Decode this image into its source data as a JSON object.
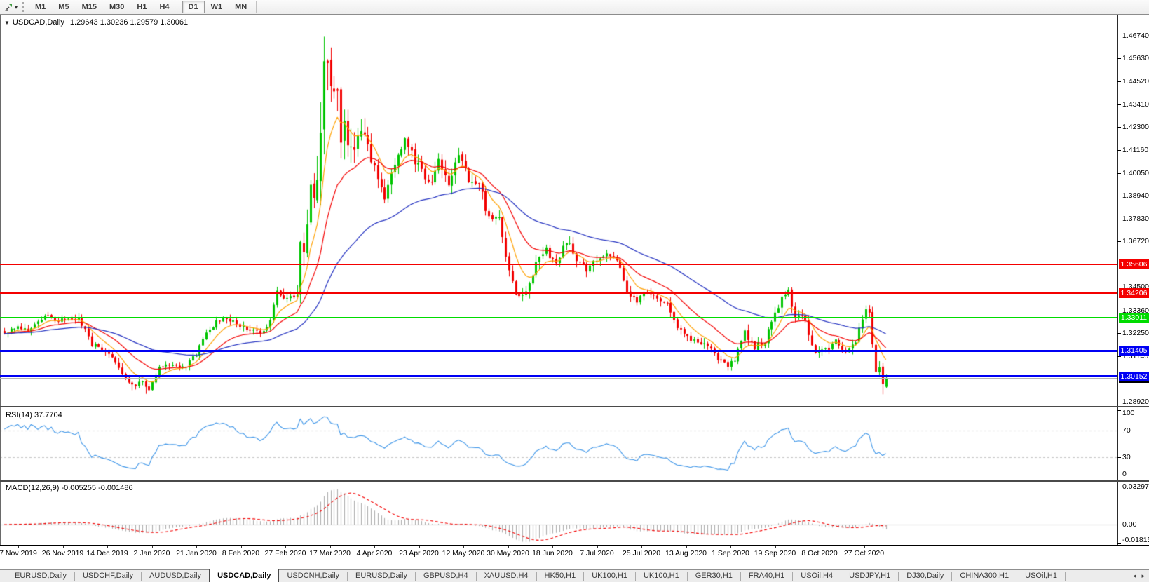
{
  "toolbar": {
    "timeframes": [
      {
        "label": "M1"
      },
      {
        "label": "M5"
      },
      {
        "label": "M15"
      },
      {
        "label": "M30"
      },
      {
        "label": "H1"
      },
      {
        "label": "H4"
      },
      {
        "label": "D1"
      },
      {
        "label": "W1"
      },
      {
        "label": "MN"
      }
    ],
    "active_timeframe": "D1",
    "dropdown_caret": "▾",
    "collapse_glyph": "▼"
  },
  "window": {
    "symbol_period": "USDCAD,Daily",
    "ohlc": "1.29643 1.30236 1.29579 1.30061"
  },
  "price_axis": {
    "ticks": [
      {
        "label": "1.46740",
        "price": 1.4674
      },
      {
        "label": "1.45630",
        "price": 1.4563
      },
      {
        "label": "1.44520",
        "price": 1.4452
      },
      {
        "label": "1.43410",
        "price": 1.4341
      },
      {
        "label": "1.42300",
        "price": 1.423
      },
      {
        "label": "1.41160",
        "price": 1.4116
      },
      {
        "label": "1.40050",
        "price": 1.4005
      },
      {
        "label": "1.38940",
        "price": 1.3894
      },
      {
        "label": "1.37830",
        "price": 1.3783
      },
      {
        "label": "1.36720",
        "price": 1.3672
      },
      {
        "label": "1.34500",
        "price": 1.345
      },
      {
        "label": "1.33360",
        "price": 1.3336
      },
      {
        "label": "1.32250",
        "price": 1.3225
      },
      {
        "label": "1.31140",
        "price": 1.3114
      },
      {
        "label": "1.28920",
        "price": 1.2892
      }
    ]
  },
  "levels": [
    {
      "label": "1.35606",
      "price": 1.35606,
      "color": "#f40000",
      "thickness": 2
    },
    {
      "label": "1.34206",
      "price": 1.34206,
      "color": "#f40000",
      "thickness": 2
    },
    {
      "label": "1.33011",
      "price": 1.33011,
      "color": "#00dc00",
      "thickness": 2
    },
    {
      "label": "1.31405",
      "price": 1.31405,
      "color": "#0000f4",
      "thickness": 3
    },
    {
      "label": "1.30152",
      "price": 1.30152,
      "color": "#0000f4",
      "thickness": 3
    }
  ],
  "current_price": {
    "label": "1.30061",
    "price": 1.30061,
    "badge_bg": "#000000",
    "line_color": "#b6b6b6"
  },
  "rsi_panel": {
    "label": "RSI(14) 37.7704",
    "ticks": [
      {
        "label": "100",
        "value": 100
      },
      {
        "label": "70",
        "value": 70
      },
      {
        "label": "30",
        "value": 30
      },
      {
        "label": "0",
        "value": 0
      }
    ],
    "dashed_levels": [
      70,
      30
    ],
    "line_color": "#3f96e8"
  },
  "macd_panel": {
    "label": "MACD(12,26,9) -0.005255 -0.001486",
    "ticks": [
      {
        "label": "0.032972",
        "value": 0.032972
      },
      {
        "label": "0.00",
        "value": 0
      },
      {
        "label": "-0.018154",
        "value": -0.018154
      }
    ],
    "hist_color": "#ababab",
    "signal_color": "#f40000"
  },
  "date_axis": {
    "labels": [
      "7 Nov 2019",
      "26 Nov 2019",
      "14 Dec 2019",
      "2 Jan 2020",
      "21 Jan 2020",
      "8 Feb 2020",
      "27 Feb 2020",
      "17 Mar 2020",
      "4 Apr 2020",
      "23 Apr 2020",
      "12 May 2020",
      "30 May 2020",
      "18 Jun 2020",
      "7 Jul 2020",
      "25 Jul 2020",
      "13 Aug 2020",
      "1 Sep 2020",
      "19 Sep 2020",
      "8 Oct 2020",
      "27 Oct 2020"
    ]
  },
  "tabs": {
    "items": [
      {
        "label": "EURUSD,Daily"
      },
      {
        "label": "USDCHF,Daily"
      },
      {
        "label": "AUDUSD,Daily"
      },
      {
        "label": "USDCAD,Daily"
      },
      {
        "label": "USDCNH,Daily"
      },
      {
        "label": "EURUSD,Daily"
      },
      {
        "label": "GBPUSD,H4"
      },
      {
        "label": "XAUUSD,H4"
      },
      {
        "label": "HK50,H1"
      },
      {
        "label": "UK100,H1"
      },
      {
        "label": "UK100,H1"
      },
      {
        "label": "GER30,H1"
      },
      {
        "label": "FRA40,H1"
      },
      {
        "label": "USOil,H4"
      },
      {
        "label": "USDJPY,H1"
      },
      {
        "label": "DJ30,Daily"
      },
      {
        "label": "CHINA300,H1"
      },
      {
        "label": "USOil,H1"
      }
    ],
    "active_index": 3,
    "scroll_left": "◂",
    "scroll_right": "▸"
  },
  "chart_data": {
    "type": "candlestick",
    "title": "USDCAD Daily",
    "symbol": "USDCAD",
    "timeframe": "Daily",
    "ylim": [
      1.2871,
      1.4773
    ],
    "candle_count": 263,
    "up_color": "#00c400",
    "down_color": "#f20000",
    "close_anchors": [
      [
        0,
        1.323
      ],
      [
        4,
        1.3262
      ],
      [
        8,
        1.324
      ],
      [
        12,
        1.3308
      ],
      [
        15,
        1.3295
      ],
      [
        18,
        1.3282
      ],
      [
        22,
        1.33
      ],
      [
        26,
        1.317
      ],
      [
        30,
        1.3148
      ],
      [
        34,
        1.3052
      ],
      [
        37,
        1.298
      ],
      [
        39,
        1.2962
      ],
      [
        41,
        1.2992
      ],
      [
        43,
        1.2956
      ],
      [
        46,
        1.3056
      ],
      [
        50,
        1.3076
      ],
      [
        54,
        1.3066
      ],
      [
        57,
        1.3122
      ],
      [
        60,
        1.3232
      ],
      [
        64,
        1.3292
      ],
      [
        68,
        1.3282
      ],
      [
        72,
        1.3252
      ],
      [
        76,
        1.3226
      ],
      [
        79,
        1.3282
      ],
      [
        81,
        1.3422
      ],
      [
        83,
        1.3382
      ],
      [
        85,
        1.342
      ],
      [
        87,
        1.3412
      ],
      [
        88,
        1.366
      ],
      [
        89,
        1.358
      ],
      [
        90,
        1.3762
      ],
      [
        91,
        1.3922
      ],
      [
        92,
        1.3892
      ],
      [
        93,
        1.4032
      ],
      [
        94,
        1.4262
      ],
      [
        95,
        1.45
      ],
      [
        96,
        1.4462
      ],
      [
        97,
        1.4382
      ],
      [
        98,
        1.4452
      ],
      [
        99,
        1.4422
      ],
      [
        100,
        1.4182
      ],
      [
        101,
        1.4262
      ],
      [
        102,
        1.4102
      ],
      [
        103,
        1.4092
      ],
      [
        105,
        1.4202
      ],
      [
        107,
        1.4212
      ],
      [
        110,
        1.4032
      ],
      [
        113,
        1.3892
      ],
      [
        116,
        1.4042
      ],
      [
        119,
        1.4182
      ],
      [
        121,
        1.4092
      ],
      [
        124,
        1.4002
      ],
      [
        126,
        1.3942
      ],
      [
        129,
        1.4072
      ],
      [
        132,
        1.3922
      ],
      [
        135,
        1.4102
      ],
      [
        138,
        1.3982
      ],
      [
        141,
        1.3942
      ],
      [
        144,
        1.3792
      ],
      [
        147,
        1.3782
      ],
      [
        150,
        1.3522
      ],
      [
        153,
        1.3392
      ],
      [
        155,
        1.3412
      ],
      [
        158,
        1.3552
      ],
      [
        161,
        1.3632
      ],
      [
        164,
        1.3562
      ],
      [
        167,
        1.3682
      ],
      [
        170,
        1.3582
      ],
      [
        173,
        1.3542
      ],
      [
        176,
        1.3592
      ],
      [
        179,
        1.3622
      ],
      [
        182,
        1.3582
      ],
      [
        185,
        1.3422
      ],
      [
        188,
        1.3382
      ],
      [
        191,
        1.3422
      ],
      [
        194,
        1.3392
      ],
      [
        197,
        1.3382
      ],
      [
        200,
        1.3252
      ],
      [
        203,
        1.3202
      ],
      [
        206,
        1.3182
      ],
      [
        209,
        1.3162
      ],
      [
        212,
        1.3102
      ],
      [
        215,
        1.3052
      ],
      [
        217,
        1.3102
      ],
      [
        220,
        1.3232
      ],
      [
        223,
        1.3162
      ],
      [
        226,
        1.3182
      ],
      [
        229,
        1.3322
      ],
      [
        231,
        1.3402
      ],
      [
        233,
        1.3422
      ],
      [
        235,
        1.3312
      ],
      [
        238,
        1.3282
      ],
      [
        241,
        1.3122
      ],
      [
        244,
        1.3142
      ],
      [
        247,
        1.3182
      ],
      [
        250,
        1.3122
      ],
      [
        253,
        1.3182
      ],
      [
        255,
        1.3302
      ],
      [
        256,
        1.3342
      ],
      [
        257,
        1.3322
      ],
      [
        258,
        1.3182
      ],
      [
        259,
        1.3052
      ],
      [
        260,
        1.3062
      ],
      [
        261,
        1.2992
      ],
      [
        262,
        1.30061
      ]
    ],
    "vol_anchors": [
      [
        0,
        0.0044
      ],
      [
        30,
        0.0046
      ],
      [
        60,
        0.004
      ],
      [
        80,
        0.0058
      ],
      [
        86,
        0.0075
      ],
      [
        89,
        0.015
      ],
      [
        93,
        0.024
      ],
      [
        96,
        0.03
      ],
      [
        100,
        0.024
      ],
      [
        104,
        0.017
      ],
      [
        108,
        0.013
      ],
      [
        115,
        0.0105
      ],
      [
        125,
        0.0095
      ],
      [
        140,
        0.0085
      ],
      [
        152,
        0.008
      ],
      [
        165,
        0.0068
      ],
      [
        180,
        0.0058
      ],
      [
        195,
        0.0056
      ],
      [
        210,
        0.006
      ],
      [
        222,
        0.0062
      ],
      [
        233,
        0.0068
      ],
      [
        245,
        0.005
      ],
      [
        252,
        0.0058
      ],
      [
        258,
        0.0075
      ],
      [
        262,
        0.0066
      ]
    ],
    "overrides": {
      "high": {
        "94": 1.435,
        "95": 1.4669,
        "96": 1.456
      },
      "low": {
        "38": 1.2948,
        "42": 1.293,
        "261": 1.2928
      }
    },
    "last_candle": {
      "open": 1.29643,
      "high": 1.30236,
      "low": 1.29579,
      "close": 1.30061
    },
    "moving_averages": [
      {
        "name": "fast-ma",
        "period": 8,
        "color": "#ffa000"
      },
      {
        "name": "mid-ma",
        "period": 20,
        "color": "#f40000"
      },
      {
        "name": "slow-ma",
        "period": 55,
        "color": "#2230c0"
      }
    ],
    "indicators": [
      {
        "name": "RSI",
        "period": 14,
        "current": 37.7704
      },
      {
        "name": "MACD",
        "fast": 12,
        "slow": 26,
        "signal": 9,
        "current_main": -0.005255,
        "current_signal": -0.001486
      }
    ],
    "horizontal_levels": [
      1.35606,
      1.34206,
      1.33011,
      1.31405,
      1.30152
    ]
  }
}
